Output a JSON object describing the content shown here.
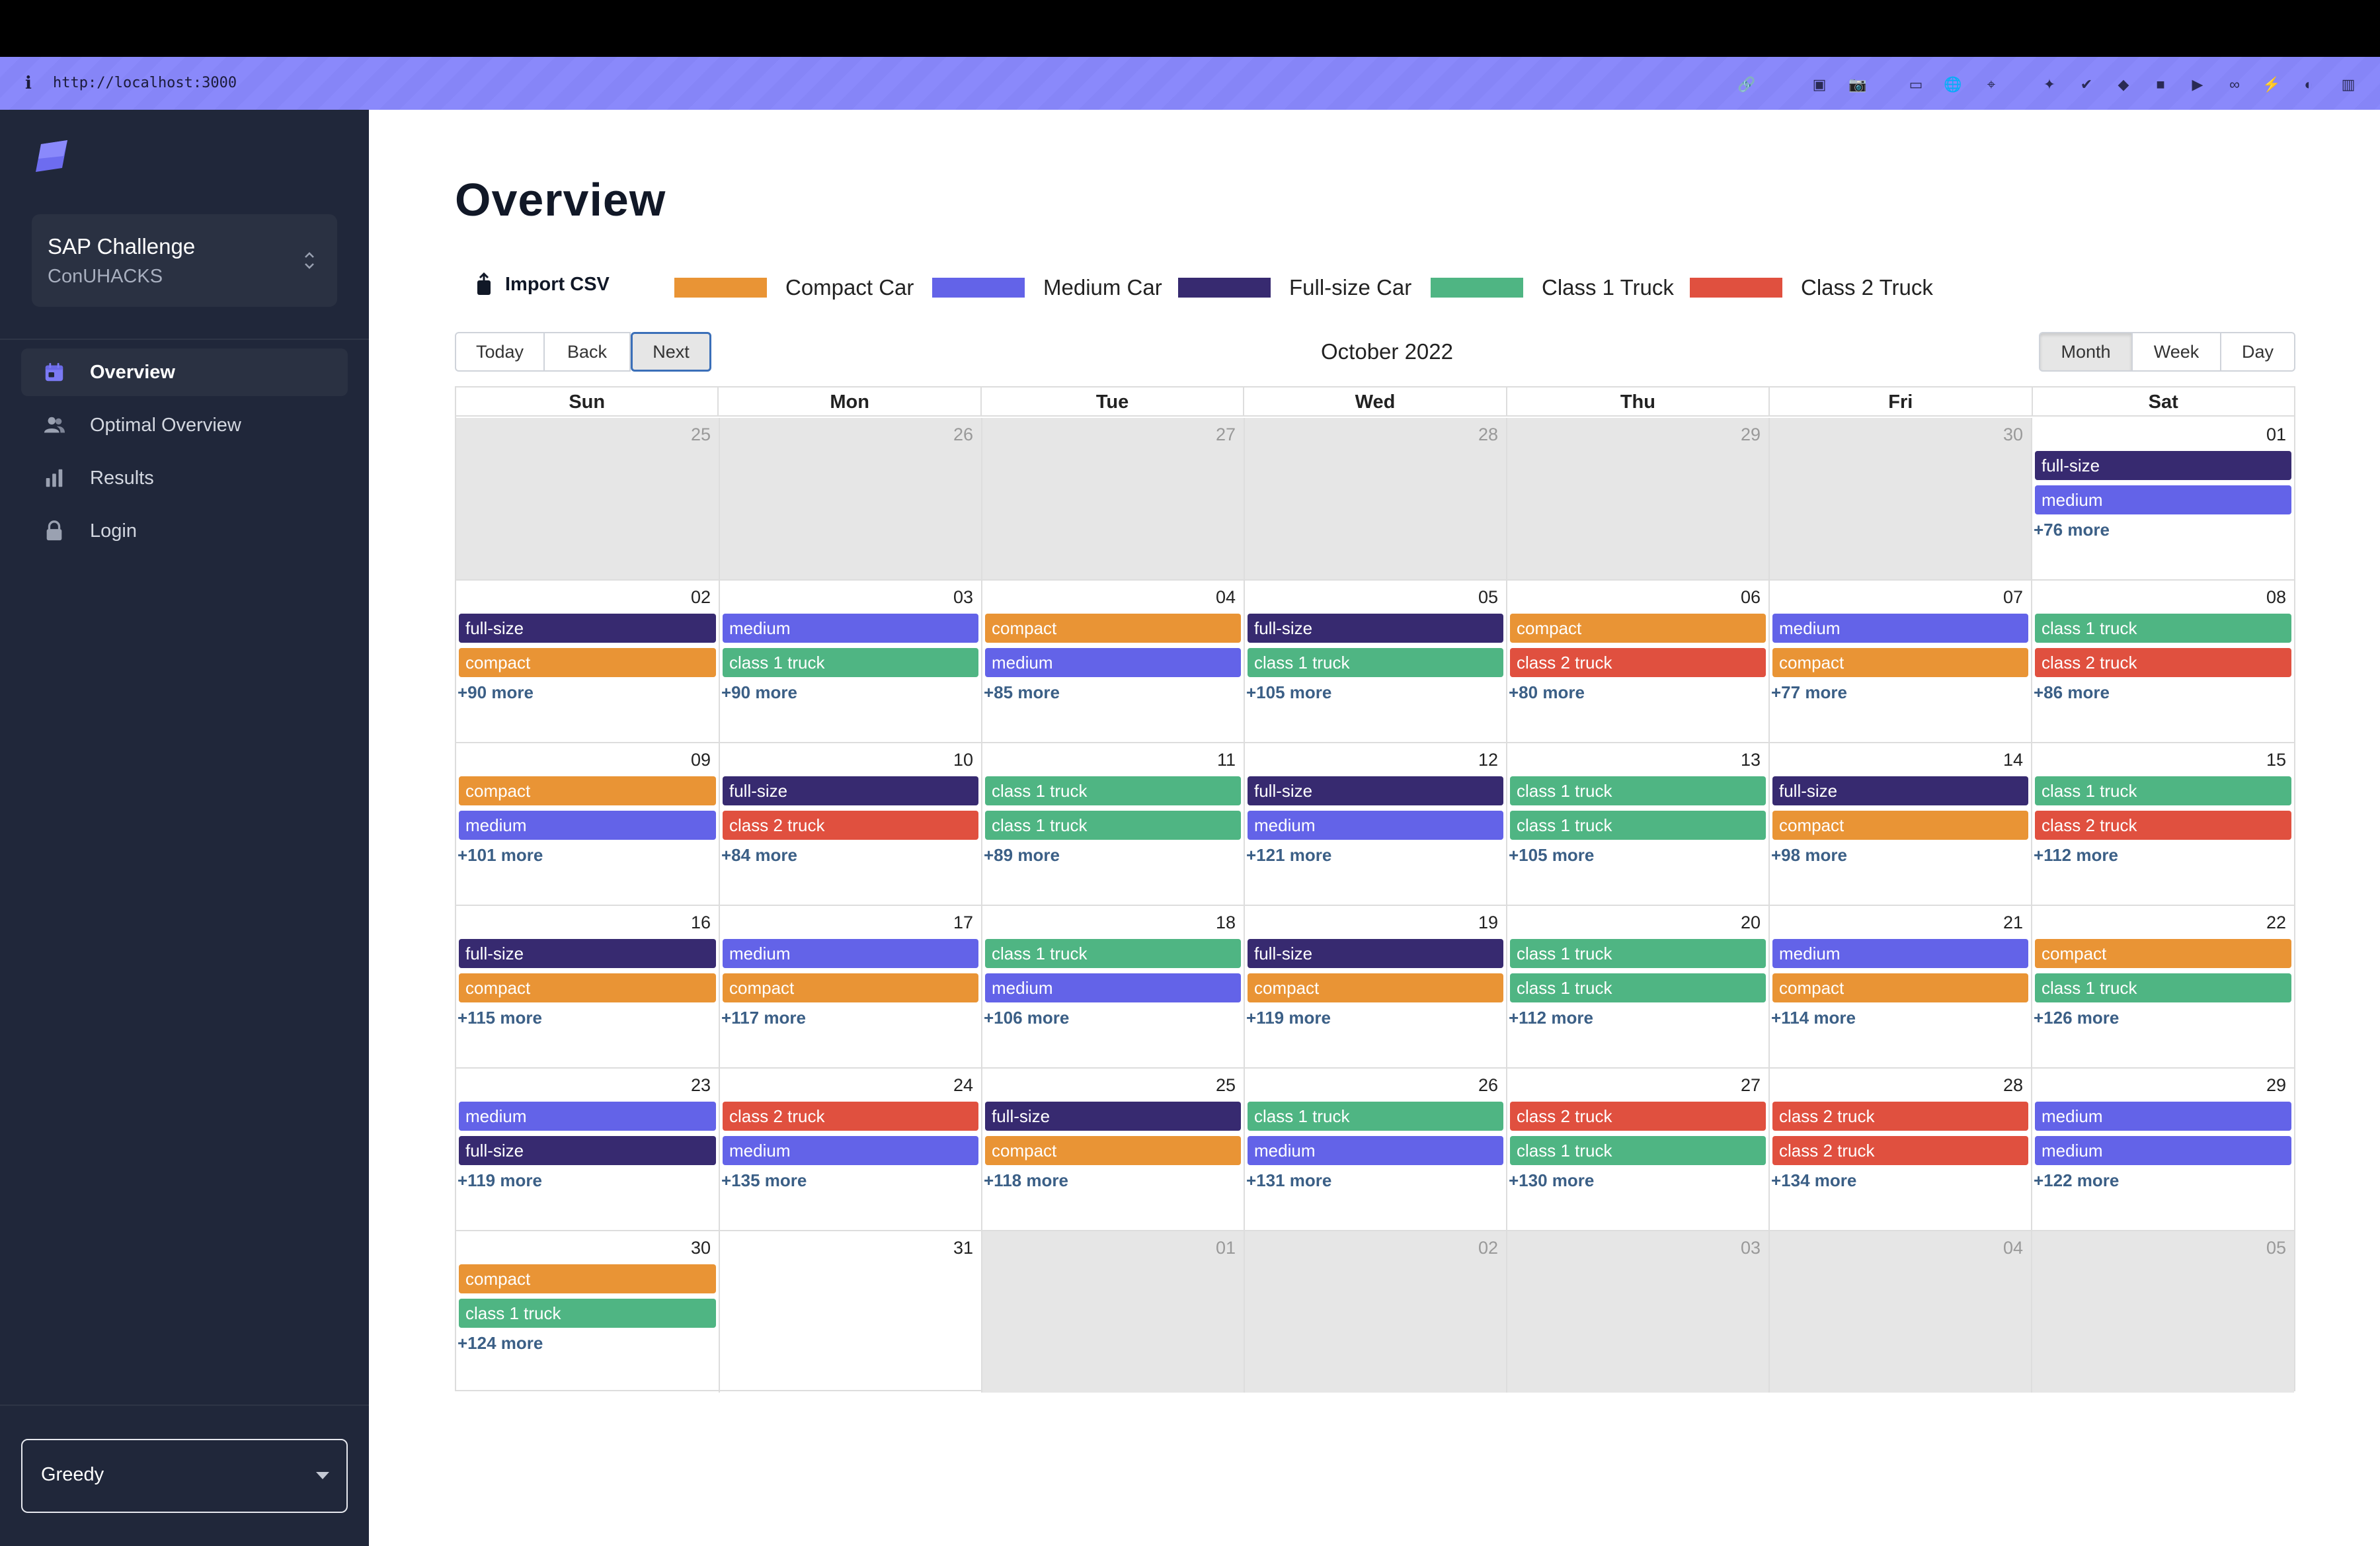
{
  "browser": {
    "url": "http://localhost:3000",
    "extension_icons": [
      "link-icon",
      "screenshot-icon",
      "camera-icon",
      "terminal-icon",
      "globe-icon",
      "crosshair-icon",
      "puzzle-icon",
      "shield-check-icon",
      "gem-icon",
      "window-icon",
      "play-icon",
      "glasses-icon",
      "lightning-icon",
      "color-wheel-icon",
      "sidebar-toggle-icon"
    ]
  },
  "sidebar": {
    "workspace_title": "SAP Challenge",
    "workspace_subtitle": "ConUHACKS",
    "nav": [
      {
        "label": "Overview",
        "icon": "calendar-icon",
        "active": true
      },
      {
        "label": "Optimal Overview",
        "icon": "users-icon",
        "active": false
      },
      {
        "label": "Results",
        "icon": "bar-chart-icon",
        "active": false
      },
      {
        "label": "Login",
        "icon": "lock-icon",
        "active": false
      }
    ],
    "algorithm_select": "Greedy"
  },
  "page": {
    "title": "Overview",
    "import_label": "Import CSV"
  },
  "colors": {
    "compact": "#e99435",
    "medium": "#6363e8",
    "fullsize": "#372a70",
    "truck1": "#4fb583",
    "truck2": "#e0503f",
    "accent": "#8786f9"
  },
  "legend": [
    {
      "label": "Compact Car",
      "key": "compact"
    },
    {
      "label": "Medium Car",
      "key": "medium"
    },
    {
      "label": "Full-size Car",
      "key": "fullsize"
    },
    {
      "label": "Class 1 Truck",
      "key": "truck1"
    },
    {
      "label": "Class 2 Truck",
      "key": "truck2"
    }
  ],
  "toolbar": {
    "nav_buttons": [
      "Today",
      "Back",
      "Next"
    ],
    "label": "October 2022",
    "views": [
      "Month",
      "Week",
      "Day"
    ],
    "active_view": "Month"
  },
  "calendar": {
    "days_of_week": [
      "Sun",
      "Mon",
      "Tue",
      "Wed",
      "Thu",
      "Fri",
      "Sat"
    ],
    "weeks": [
      [
        {
          "d": "25",
          "off": true
        },
        {
          "d": "26",
          "off": true
        },
        {
          "d": "27",
          "off": true
        },
        {
          "d": "28",
          "off": true
        },
        {
          "d": "29",
          "off": true
        },
        {
          "d": "30",
          "off": true
        },
        {
          "d": "01",
          "events": [
            [
              "full-size",
              "fullsize"
            ],
            [
              "medium",
              "medium"
            ]
          ],
          "more": "+76 more"
        }
      ],
      [
        {
          "d": "02",
          "events": [
            [
              "full-size",
              "fullsize"
            ],
            [
              "compact",
              "compact"
            ]
          ],
          "more": "+90 more"
        },
        {
          "d": "03",
          "events": [
            [
              "medium",
              "medium"
            ],
            [
              "class 1 truck",
              "truck1"
            ]
          ],
          "more": "+90 more"
        },
        {
          "d": "04",
          "events": [
            [
              "compact",
              "compact"
            ],
            [
              "medium",
              "medium"
            ]
          ],
          "more": "+85 more"
        },
        {
          "d": "05",
          "events": [
            [
              "full-size",
              "fullsize"
            ],
            [
              "class 1 truck",
              "truck1"
            ]
          ],
          "more": "+105 more"
        },
        {
          "d": "06",
          "events": [
            [
              "compact",
              "compact"
            ],
            [
              "class 2 truck",
              "truck2"
            ]
          ],
          "more": "+80 more"
        },
        {
          "d": "07",
          "events": [
            [
              "medium",
              "medium"
            ],
            [
              "compact",
              "compact"
            ]
          ],
          "more": "+77 more"
        },
        {
          "d": "08",
          "events": [
            [
              "class 1 truck",
              "truck1"
            ],
            [
              "class 2 truck",
              "truck2"
            ]
          ],
          "more": "+86 more"
        }
      ],
      [
        {
          "d": "09",
          "events": [
            [
              "compact",
              "compact"
            ],
            [
              "medium",
              "medium"
            ]
          ],
          "more": "+101 more"
        },
        {
          "d": "10",
          "events": [
            [
              "full-size",
              "fullsize"
            ],
            [
              "class 2 truck",
              "truck2"
            ]
          ],
          "more": "+84 more"
        },
        {
          "d": "11",
          "events": [
            [
              "class 1 truck",
              "truck1"
            ],
            [
              "class 1 truck",
              "truck1"
            ]
          ],
          "more": "+89 more"
        },
        {
          "d": "12",
          "events": [
            [
              "full-size",
              "fullsize"
            ],
            [
              "medium",
              "medium"
            ]
          ],
          "more": "+121 more"
        },
        {
          "d": "13",
          "events": [
            [
              "class 1 truck",
              "truck1"
            ],
            [
              "class 1 truck",
              "truck1"
            ]
          ],
          "more": "+105 more"
        },
        {
          "d": "14",
          "events": [
            [
              "full-size",
              "fullsize"
            ],
            [
              "compact",
              "compact"
            ]
          ],
          "more": "+98 more"
        },
        {
          "d": "15",
          "events": [
            [
              "class 1 truck",
              "truck1"
            ],
            [
              "class 2 truck",
              "truck2"
            ]
          ],
          "more": "+112 more"
        }
      ],
      [
        {
          "d": "16",
          "events": [
            [
              "full-size",
              "fullsize"
            ],
            [
              "compact",
              "compact"
            ]
          ],
          "more": "+115 more"
        },
        {
          "d": "17",
          "events": [
            [
              "medium",
              "medium"
            ],
            [
              "compact",
              "compact"
            ]
          ],
          "more": "+117 more"
        },
        {
          "d": "18",
          "events": [
            [
              "class 1 truck",
              "truck1"
            ],
            [
              "medium",
              "medium"
            ]
          ],
          "more": "+106 more"
        },
        {
          "d": "19",
          "events": [
            [
              "full-size",
              "fullsize"
            ],
            [
              "compact",
              "compact"
            ]
          ],
          "more": "+119 more"
        },
        {
          "d": "20",
          "events": [
            [
              "class 1 truck",
              "truck1"
            ],
            [
              "class 1 truck",
              "truck1"
            ]
          ],
          "more": "+112 more"
        },
        {
          "d": "21",
          "events": [
            [
              "medium",
              "medium"
            ],
            [
              "compact",
              "compact"
            ]
          ],
          "more": "+114 more"
        },
        {
          "d": "22",
          "events": [
            [
              "compact",
              "compact"
            ],
            [
              "class 1 truck",
              "truck1"
            ]
          ],
          "more": "+126 more"
        }
      ],
      [
        {
          "d": "23",
          "events": [
            [
              "medium",
              "medium"
            ],
            [
              "full-size",
              "fullsize"
            ]
          ],
          "more": "+119 more"
        },
        {
          "d": "24",
          "events": [
            [
              "class 2 truck",
              "truck2"
            ],
            [
              "medium",
              "medium"
            ]
          ],
          "more": "+135 more"
        },
        {
          "d": "25",
          "events": [
            [
              "full-size",
              "fullsize"
            ],
            [
              "compact",
              "compact"
            ]
          ],
          "more": "+118 more"
        },
        {
          "d": "26",
          "events": [
            [
              "class 1 truck",
              "truck1"
            ],
            [
              "medium",
              "medium"
            ]
          ],
          "more": "+131 more"
        },
        {
          "d": "27",
          "events": [
            [
              "class 2 truck",
              "truck2"
            ],
            [
              "class 1 truck",
              "truck1"
            ]
          ],
          "more": "+130 more"
        },
        {
          "d": "28",
          "events": [
            [
              "class 2 truck",
              "truck2"
            ],
            [
              "class 2 truck",
              "truck2"
            ]
          ],
          "more": "+134 more"
        },
        {
          "d": "29",
          "events": [
            [
              "medium",
              "medium"
            ],
            [
              "medium",
              "medium"
            ]
          ],
          "more": "+122 more"
        }
      ],
      [
        {
          "d": "30",
          "events": [
            [
              "compact",
              "compact"
            ],
            [
              "class 1 truck",
              "truck1"
            ]
          ],
          "more": "+124 more"
        },
        {
          "d": "31"
        },
        {
          "d": "01",
          "off": true
        },
        {
          "d": "02",
          "off": true
        },
        {
          "d": "03",
          "off": true
        },
        {
          "d": "04",
          "off": true
        },
        {
          "d": "05",
          "off": true
        }
      ]
    ]
  }
}
